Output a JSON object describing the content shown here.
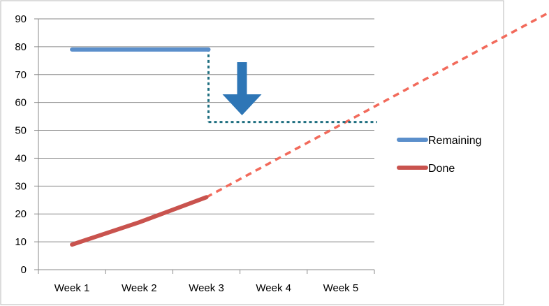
{
  "chart_data": {
    "type": "line",
    "title": "",
    "xlabel": "",
    "ylabel": "",
    "categories": [
      "Week 1",
      "Week 2",
      "Week 3",
      "Week 4",
      "Week 5"
    ],
    "ylim": [
      0,
      90
    ],
    "yticks": [
      0,
      10,
      20,
      30,
      40,
      50,
      60,
      70,
      80,
      90
    ],
    "grid": true,
    "legend_position": "right",
    "series": [
      {
        "name": "Remaining",
        "color": "#5B8FCB",
        "values": [
          79,
          79,
          79,
          null,
          null
        ]
      },
      {
        "name": "Done",
        "color": "#C9534E",
        "values": [
          9,
          17,
          26,
          null,
          null
        ]
      }
    ],
    "annotations": {
      "done_projection": {
        "color": "#F26A5B",
        "style": "dashed",
        "from": [
          "Week 3",
          26
        ],
        "slope_per_week": 13
      },
      "remaining_drop": {
        "color": "#1F6F80",
        "style": "dotted",
        "from": [
          "Week 3",
          79
        ],
        "to_value": 52,
        "until": [
          "Week 5",
          52
        ]
      },
      "arrow": {
        "color": "#2E76B6",
        "direction": "down"
      }
    }
  }
}
